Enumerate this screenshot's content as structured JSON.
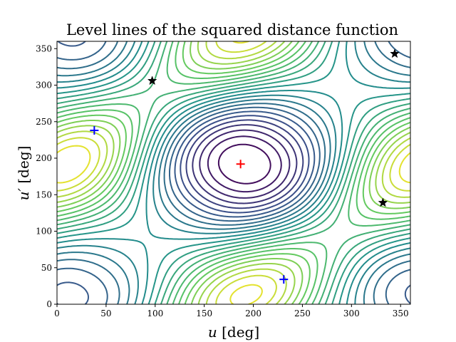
{
  "chart_data": {
    "type": "contour",
    "title": "Level lines of the squared distance function",
    "xlabel_var": "u",
    "xlabel_unit": " [deg]",
    "ylabel_var": "u′",
    "ylabel_unit": " [deg]",
    "xlim": [
      0,
      360
    ],
    "ylim": [
      0,
      360
    ],
    "xticks": [
      0,
      50,
      100,
      150,
      200,
      250,
      300,
      350
    ],
    "yticks": [
      0,
      50,
      100,
      150,
      200,
      250,
      300,
      350
    ],
    "colormap": [
      "#440154",
      "#3b528b",
      "#21918c",
      "#5ec962",
      "#fde725"
    ],
    "contour_levels": 24,
    "markers": [
      {
        "kind": "maximum",
        "symbol": "plus",
        "color": "#ff0000",
        "x": 187,
        "y": 192
      },
      {
        "kind": "minimum",
        "symbol": "plus",
        "color": "#0000ff",
        "x": 38,
        "y": 238
      },
      {
        "kind": "minimum",
        "symbol": "plus",
        "color": "#0000ff",
        "x": 231,
        "y": 34
      },
      {
        "kind": "saddle",
        "symbol": "star",
        "color": "#000000",
        "x": 97,
        "y": 306
      },
      {
        "kind": "saddle",
        "symbol": "star",
        "color": "#000000",
        "x": 344,
        "y": 343
      },
      {
        "kind": "saddle",
        "symbol": "star",
        "color": "#000000",
        "x": 332,
        "y": 139
      }
    ],
    "grid": false,
    "legend": "none"
  }
}
